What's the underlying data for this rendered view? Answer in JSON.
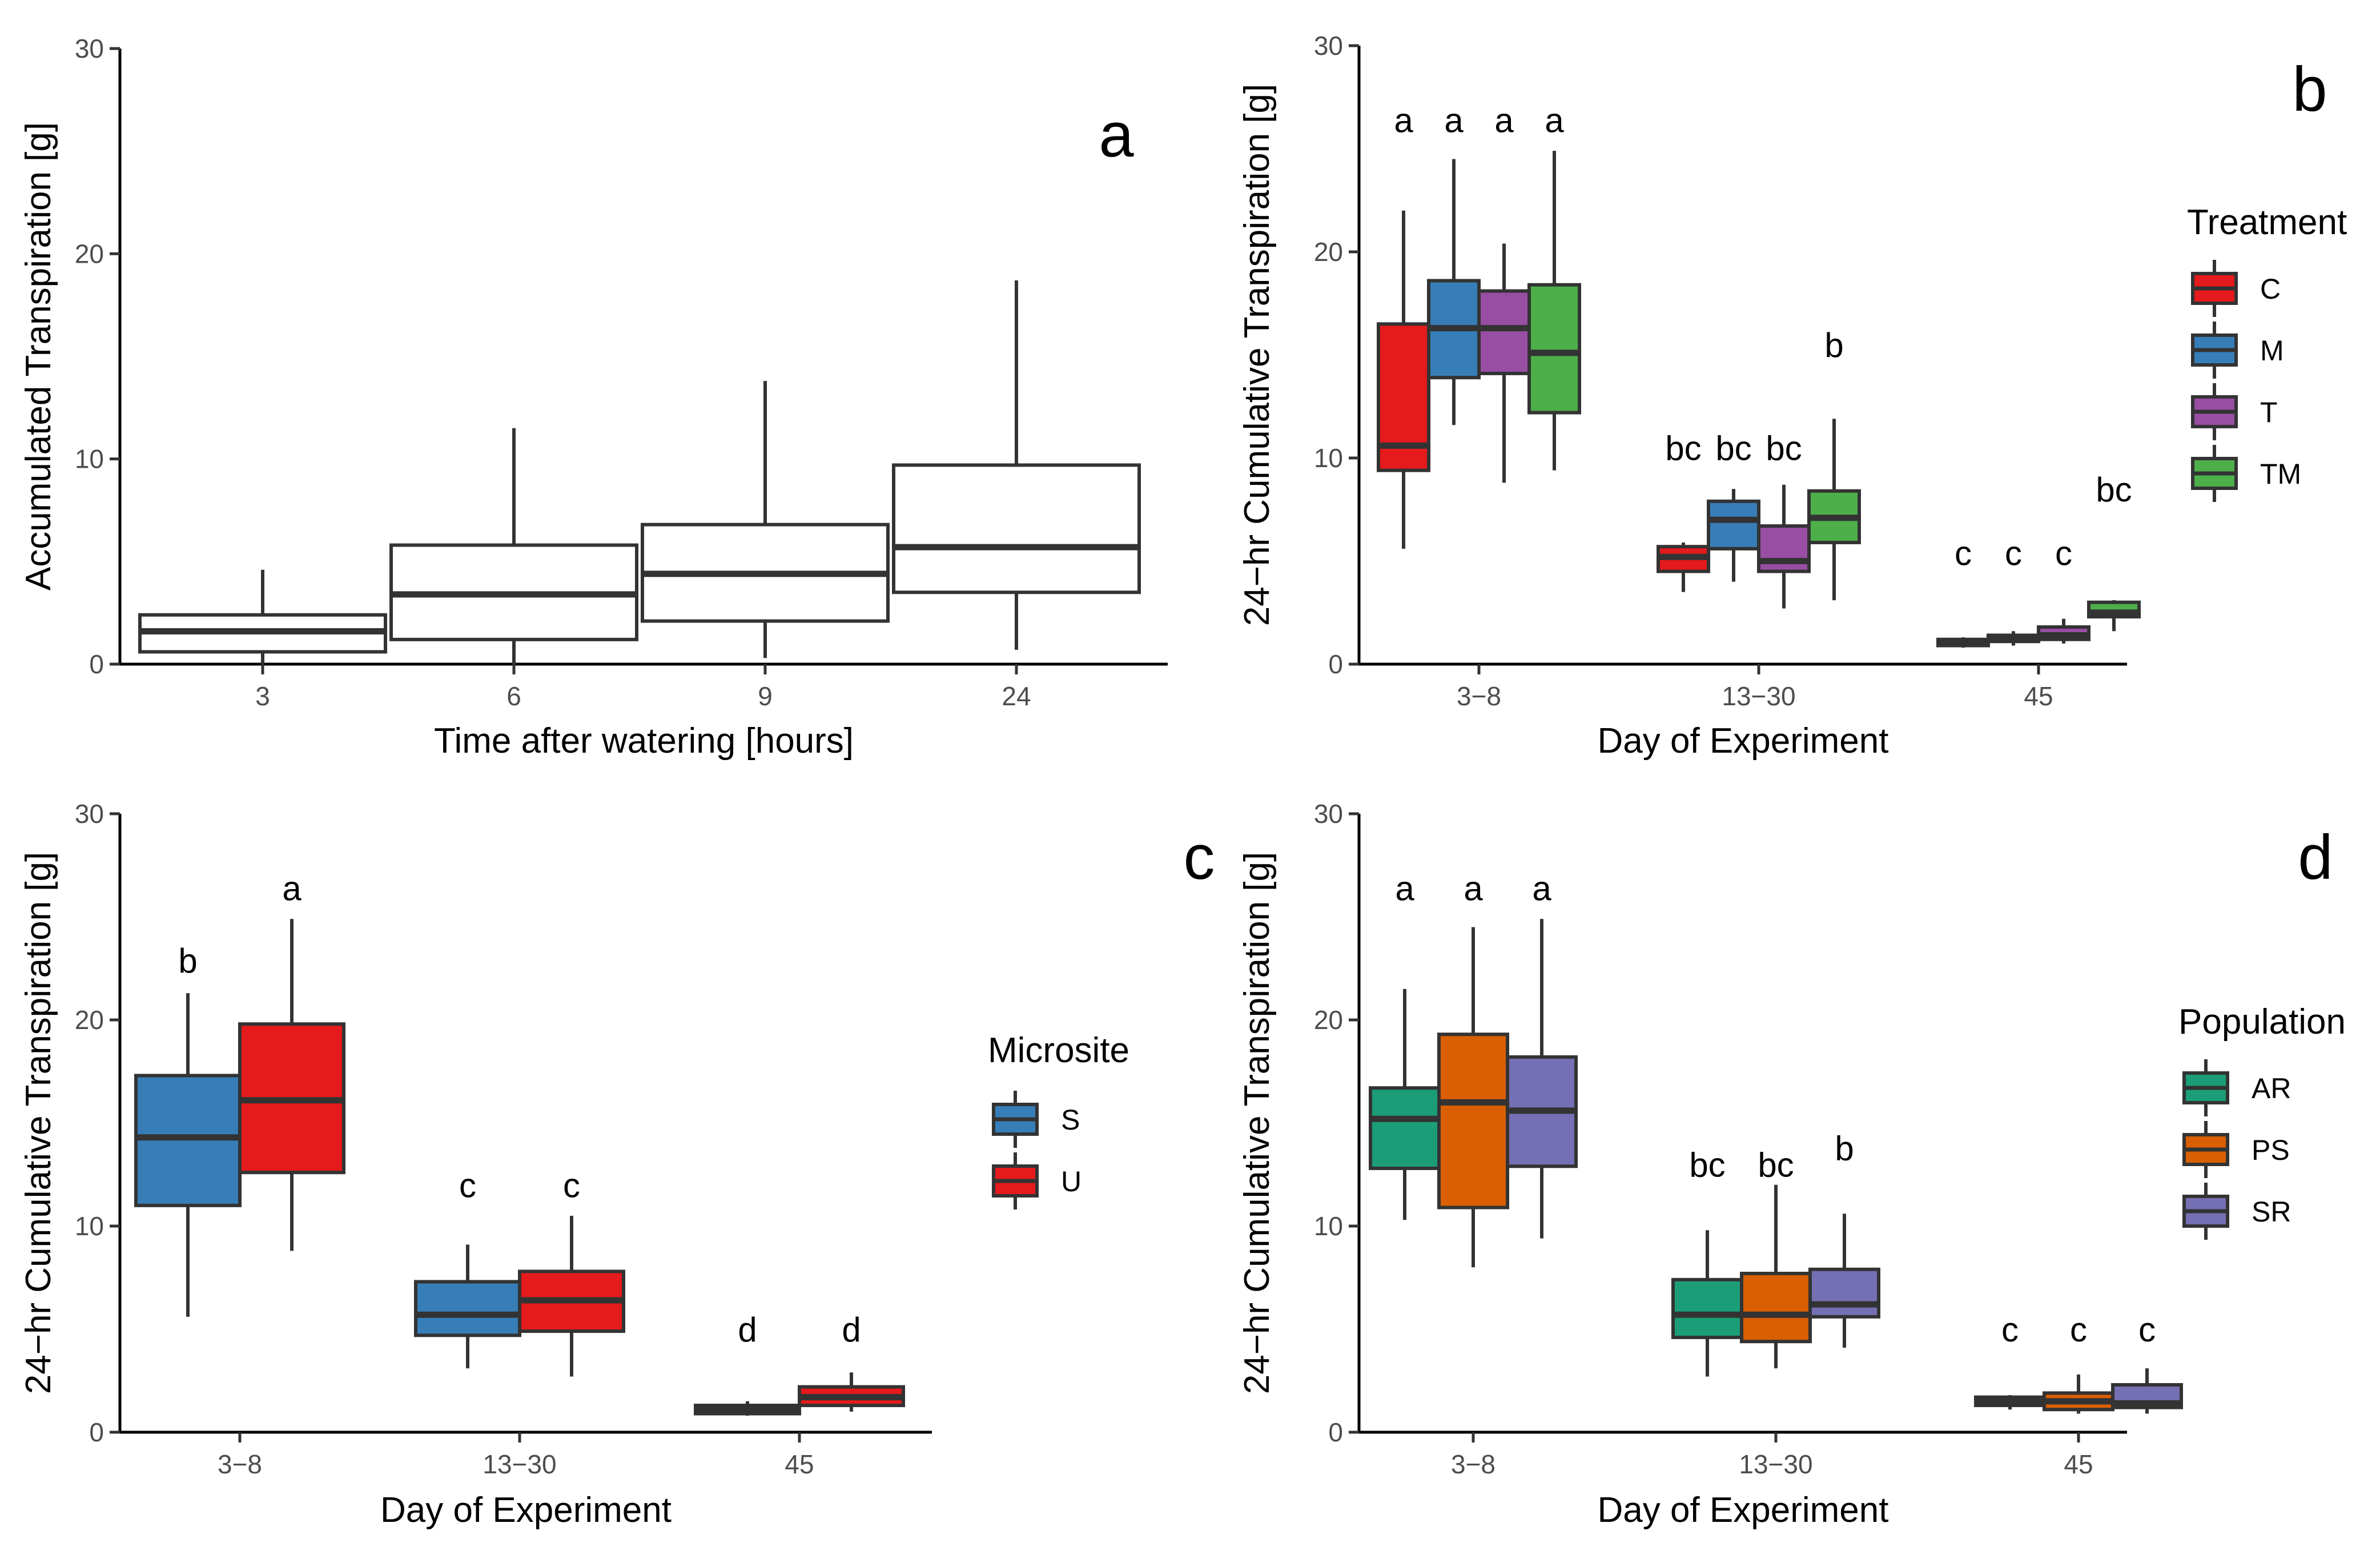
{
  "chart_data": [
    {
      "id": "a",
      "type": "boxplot",
      "panel_label": "a",
      "xlabel": "Time after watering [hours]",
      "ylabel": "Accumulated Transpiration [g]",
      "ylim": [
        0,
        30
      ],
      "yticks": [
        "0",
        "10",
        "20",
        "30"
      ],
      "categories": [
        "3",
        "6",
        "9",
        "24"
      ],
      "groups": [
        {
          "name": "",
          "color": "#ffffff"
        }
      ],
      "boxes": [
        {
          "cat": 0,
          "group": 0,
          "min": 0,
          "q1": 0.6,
          "median": 1.6,
          "q3": 2.4,
          "max": 4.6
        },
        {
          "cat": 1,
          "group": 0,
          "min": 0,
          "q1": 1.2,
          "median": 3.4,
          "q3": 5.8,
          "max": 11.5
        },
        {
          "cat": 2,
          "group": 0,
          "min": 0.3,
          "q1": 2.1,
          "median": 4.4,
          "q3": 6.8,
          "max": 13.8
        },
        {
          "cat": 3,
          "group": 0,
          "min": 0.7,
          "q1": 3.5,
          "median": 5.7,
          "q3": 9.7,
          "max": 18.7
        }
      ],
      "letters": []
    },
    {
      "id": "b",
      "type": "boxplot",
      "panel_label": "b",
      "xlabel": "Day of Experiment",
      "ylabel": "24−hr Cumulative Transpiration [g]",
      "ylim": [
        0,
        30
      ],
      "yticks": [
        "0",
        "10",
        "20",
        "30"
      ],
      "categories": [
        "3−8",
        "13−30",
        "45"
      ],
      "legend_title": "Treatment",
      "groups": [
        {
          "name": "C",
          "color": "#e41a1c"
        },
        {
          "name": "M",
          "color": "#377eb8"
        },
        {
          "name": "T",
          "color": "#984ea3"
        },
        {
          "name": "TM",
          "color": "#4daf4a"
        }
      ],
      "boxes": [
        {
          "cat": 0,
          "group": 0,
          "min": 5.6,
          "q1": 9.4,
          "median": 10.6,
          "q3": 16.5,
          "max": 22.0
        },
        {
          "cat": 0,
          "group": 1,
          "min": 11.6,
          "q1": 13.9,
          "median": 16.3,
          "q3": 18.6,
          "max": 24.5
        },
        {
          "cat": 0,
          "group": 2,
          "min": 8.8,
          "q1": 14.1,
          "median": 16.3,
          "q3": 18.1,
          "max": 20.4
        },
        {
          "cat": 0,
          "group": 3,
          "min": 9.4,
          "q1": 12.2,
          "median": 15.1,
          "q3": 18.4,
          "max": 24.9
        },
        {
          "cat": 1,
          "group": 0,
          "min": 3.5,
          "q1": 4.5,
          "median": 5.2,
          "q3": 5.7,
          "max": 5.9
        },
        {
          "cat": 1,
          "group": 1,
          "min": 4.0,
          "q1": 5.6,
          "median": 7.0,
          "q3": 7.9,
          "max": 8.5
        },
        {
          "cat": 1,
          "group": 2,
          "min": 2.7,
          "q1": 4.5,
          "median": 5.0,
          "q3": 6.7,
          "max": 8.7
        },
        {
          "cat": 1,
          "group": 3,
          "min": 3.1,
          "q1": 5.9,
          "median": 7.1,
          "q3": 8.4,
          "max": 11.9
        },
        {
          "cat": 2,
          "group": 0,
          "min": 0.8,
          "q1": 0.9,
          "median": 1.0,
          "q3": 1.2,
          "max": 1.3
        },
        {
          "cat": 2,
          "group": 1,
          "min": 0.9,
          "q1": 1.1,
          "median": 1.2,
          "q3": 1.4,
          "max": 1.6
        },
        {
          "cat": 2,
          "group": 2,
          "min": 1.0,
          "q1": 1.2,
          "median": 1.4,
          "q3": 1.8,
          "max": 2.2
        },
        {
          "cat": 2,
          "group": 3,
          "min": 1.6,
          "q1": 2.3,
          "median": 2.5,
          "q3": 3.0,
          "max": 3.1
        }
      ],
      "letters": [
        {
          "cat": 0,
          "group": 0,
          "y": 25.8,
          "text": "a"
        },
        {
          "cat": 0,
          "group": 1,
          "y": 25.8,
          "text": "a"
        },
        {
          "cat": 0,
          "group": 2,
          "y": 25.8,
          "text": "a"
        },
        {
          "cat": 0,
          "group": 3,
          "y": 25.8,
          "text": "a"
        },
        {
          "cat": 1,
          "group": 0,
          "y": 9.9,
          "text": "bc"
        },
        {
          "cat": 1,
          "group": 1,
          "y": 9.9,
          "text": "bc"
        },
        {
          "cat": 1,
          "group": 2,
          "y": 9.9,
          "text": "bc"
        },
        {
          "cat": 1,
          "group": 3,
          "y": 14.9,
          "text": "b"
        },
        {
          "cat": 2,
          "group": 0,
          "y": 4.8,
          "text": "c"
        },
        {
          "cat": 2,
          "group": 1,
          "y": 4.8,
          "text": "c"
        },
        {
          "cat": 2,
          "group": 2,
          "y": 4.8,
          "text": "c"
        },
        {
          "cat": 2,
          "group": 3,
          "y": 7.9,
          "text": "bc"
        }
      ]
    },
    {
      "id": "c",
      "type": "boxplot",
      "panel_label": "c",
      "xlabel": "Day of Experiment",
      "ylabel": "24−hr Cumulative Transpiration [g]",
      "ylim": [
        0,
        30
      ],
      "yticks": [
        "0",
        "10",
        "20",
        "30"
      ],
      "categories": [
        "3−8",
        "13−30",
        "45"
      ],
      "legend_title": "Microsite",
      "groups": [
        {
          "name": "S",
          "color": "#377eb8"
        },
        {
          "name": "U",
          "color": "#e41a1c"
        }
      ],
      "boxes": [
        {
          "cat": 0,
          "group": 0,
          "min": 5.6,
          "q1": 11.0,
          "median": 14.3,
          "q3": 17.3,
          "max": 21.3
        },
        {
          "cat": 0,
          "group": 1,
          "min": 8.8,
          "q1": 12.6,
          "median": 16.1,
          "q3": 19.8,
          "max": 24.9
        },
        {
          "cat": 1,
          "group": 0,
          "min": 3.1,
          "q1": 4.7,
          "median": 5.7,
          "q3": 7.3,
          "max": 9.1
        },
        {
          "cat": 1,
          "group": 1,
          "min": 2.7,
          "q1": 4.9,
          "median": 6.4,
          "q3": 7.8,
          "max": 10.5
        },
        {
          "cat": 2,
          "group": 0,
          "min": 0.8,
          "q1": 0.9,
          "median": 1.1,
          "q3": 1.3,
          "max": 1.5
        },
        {
          "cat": 2,
          "group": 1,
          "min": 1.0,
          "q1": 1.3,
          "median": 1.7,
          "q3": 2.2,
          "max": 2.9
        }
      ],
      "letters": [
        {
          "cat": 0,
          "group": 0,
          "y": 22.3,
          "text": "b"
        },
        {
          "cat": 0,
          "group": 1,
          "y": 25.8,
          "text": "a"
        },
        {
          "cat": 1,
          "group": 0,
          "y": 11.4,
          "text": "c"
        },
        {
          "cat": 1,
          "group": 1,
          "y": 11.4,
          "text": "c"
        },
        {
          "cat": 2,
          "group": 0,
          "y": 4.4,
          "text": "d"
        },
        {
          "cat": 2,
          "group": 1,
          "y": 4.4,
          "text": "d"
        }
      ]
    },
    {
      "id": "d",
      "type": "boxplot",
      "panel_label": "d",
      "xlabel": "Day of Experiment",
      "ylabel": "24−hr Cumulative Transpiration [g]",
      "ylim": [
        0,
        30
      ],
      "yticks": [
        "0",
        "10",
        "20",
        "30"
      ],
      "categories": [
        "3−8",
        "13−30",
        "45"
      ],
      "legend_title": "Population",
      "groups": [
        {
          "name": "AR",
          "color": "#1b9e77"
        },
        {
          "name": "PS",
          "color": "#d95f02"
        },
        {
          "name": "SR",
          "color": "#7570b3"
        }
      ],
      "boxes": [
        {
          "cat": 0,
          "group": 0,
          "min": 10.3,
          "q1": 12.8,
          "median": 15.2,
          "q3": 16.7,
          "max": 21.5
        },
        {
          "cat": 0,
          "group": 1,
          "min": 8.0,
          "q1": 10.9,
          "median": 16.0,
          "q3": 19.3,
          "max": 24.5
        },
        {
          "cat": 0,
          "group": 2,
          "min": 9.4,
          "q1": 12.9,
          "median": 15.6,
          "q3": 18.2,
          "max": 24.9
        },
        {
          "cat": 1,
          "group": 0,
          "min": 2.7,
          "q1": 4.6,
          "median": 5.7,
          "q3": 7.4,
          "max": 9.8
        },
        {
          "cat": 1,
          "group": 1,
          "min": 3.1,
          "q1": 4.4,
          "median": 5.7,
          "q3": 7.7,
          "max": 12.0
        },
        {
          "cat": 1,
          "group": 2,
          "min": 4.1,
          "q1": 5.6,
          "median": 6.2,
          "q3": 7.9,
          "max": 10.6
        },
        {
          "cat": 2,
          "group": 0,
          "min": 1.1,
          "q1": 1.3,
          "median": 1.5,
          "q3": 1.7,
          "max": 1.8
        },
        {
          "cat": 2,
          "group": 1,
          "min": 0.9,
          "q1": 1.1,
          "median": 1.5,
          "q3": 1.9,
          "max": 2.8
        },
        {
          "cat": 2,
          "group": 2,
          "min": 0.9,
          "q1": 1.2,
          "median": 1.4,
          "q3": 2.3,
          "max": 3.1
        }
      ],
      "letters": [
        {
          "cat": 0,
          "group": 0,
          "y": 25.8,
          "text": "a"
        },
        {
          "cat": 0,
          "group": 1,
          "y": 25.8,
          "text": "a"
        },
        {
          "cat": 0,
          "group": 2,
          "y": 25.8,
          "text": "a"
        },
        {
          "cat": 1,
          "group": 0,
          "y": 12.4,
          "text": "bc"
        },
        {
          "cat": 1,
          "group": 1,
          "y": 12.4,
          "text": "bc"
        },
        {
          "cat": 1,
          "group": 2,
          "y": 13.2,
          "text": "b"
        },
        {
          "cat": 2,
          "group": 0,
          "y": 4.4,
          "text": "c"
        },
        {
          "cat": 2,
          "group": 1,
          "y": 4.4,
          "text": "c"
        },
        {
          "cat": 2,
          "group": 2,
          "y": 4.4,
          "text": "c"
        }
      ]
    }
  ]
}
